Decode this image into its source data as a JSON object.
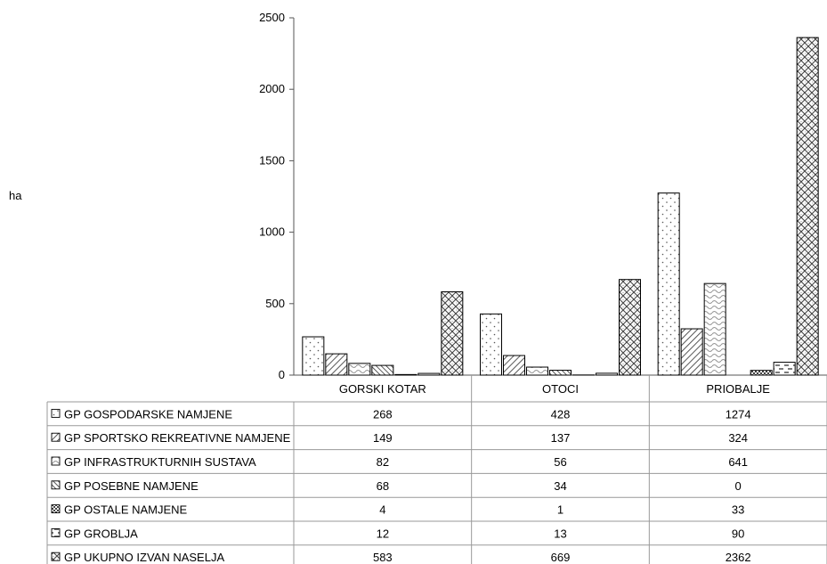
{
  "chart_data": {
    "type": "bar",
    "ylabel": "ha",
    "ylim": [
      0,
      2500
    ],
    "yticks": [
      0,
      500,
      1000,
      1500,
      2000,
      2500
    ],
    "categories": [
      "GORSKI  KOTAR",
      "OTOCI",
      "PRIOBALJE"
    ],
    "legend": "data-table",
    "series": [
      {
        "name": "GP GOSPODARSKE NAMJENE",
        "values": [
          268,
          428,
          1274
        ],
        "pattern": "dots"
      },
      {
        "name": "GP SPORTSKO REKREATIVNE NAMJENE",
        "values": [
          149,
          137,
          324
        ],
        "pattern": "diagonal"
      },
      {
        "name": "GP INFRASTRUKTURNIH SUSTAVA",
        "values": [
          82,
          56,
          641
        ],
        "pattern": "waves"
      },
      {
        "name": "GP POSEBNE NAMJENE",
        "values": [
          68,
          34,
          0
        ],
        "pattern": "diagonal-dense"
      },
      {
        "name": "GP OSTALE NAMJENE",
        "values": [
          4,
          1,
          33
        ],
        "pattern": "checker"
      },
      {
        "name": "GP GROBLJA",
        "values": [
          12,
          13,
          90
        ],
        "pattern": "dashes"
      },
      {
        "name": "GP UKUPNO IZVAN NASELJA",
        "values": [
          583,
          669,
          2362
        ],
        "pattern": "crosshatch"
      }
    ]
  }
}
